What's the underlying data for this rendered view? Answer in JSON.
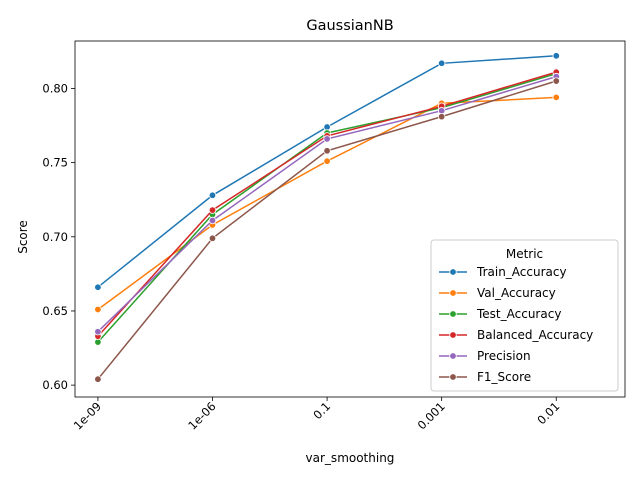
{
  "chart_data": {
    "type": "line",
    "title": "GaussianNB",
    "xlabel": "var_smoothing",
    "ylabel": "Score",
    "categories": [
      "1e-09",
      "1e-06",
      "0.1",
      "0.001",
      "0.01"
    ],
    "ylim": [
      0.592,
      0.832
    ],
    "yticks": [
      0.6,
      0.65,
      0.7,
      0.75,
      0.8
    ],
    "ytick_labels": [
      "0.60",
      "0.65",
      "0.70",
      "0.75",
      "0.80"
    ],
    "legend_title": "Metric",
    "legend_position": "lower-right",
    "grid": false,
    "series": [
      {
        "name": "Train_Accuracy",
        "color": "#1f77b4",
        "values": [
          0.666,
          0.728,
          0.774,
          0.817,
          0.822
        ]
      },
      {
        "name": "Val_Accuracy",
        "color": "#ff7f0e",
        "values": [
          0.651,
          0.708,
          0.751,
          0.79,
          0.794
        ]
      },
      {
        "name": "Test_Accuracy",
        "color": "#2ca02c",
        "values": [
          0.629,
          0.715,
          0.77,
          0.787,
          0.81
        ]
      },
      {
        "name": "Balanced_Accuracy",
        "color": "#d62728",
        "values": [
          0.633,
          0.718,
          0.768,
          0.788,
          0.811
        ]
      },
      {
        "name": "Precision",
        "color": "#9467bd",
        "values": [
          0.636,
          0.711,
          0.766,
          0.785,
          0.808
        ]
      },
      {
        "name": "F1_Score",
        "color": "#8c564b",
        "values": [
          0.604,
          0.699,
          0.758,
          0.781,
          0.805
        ]
      }
    ]
  }
}
